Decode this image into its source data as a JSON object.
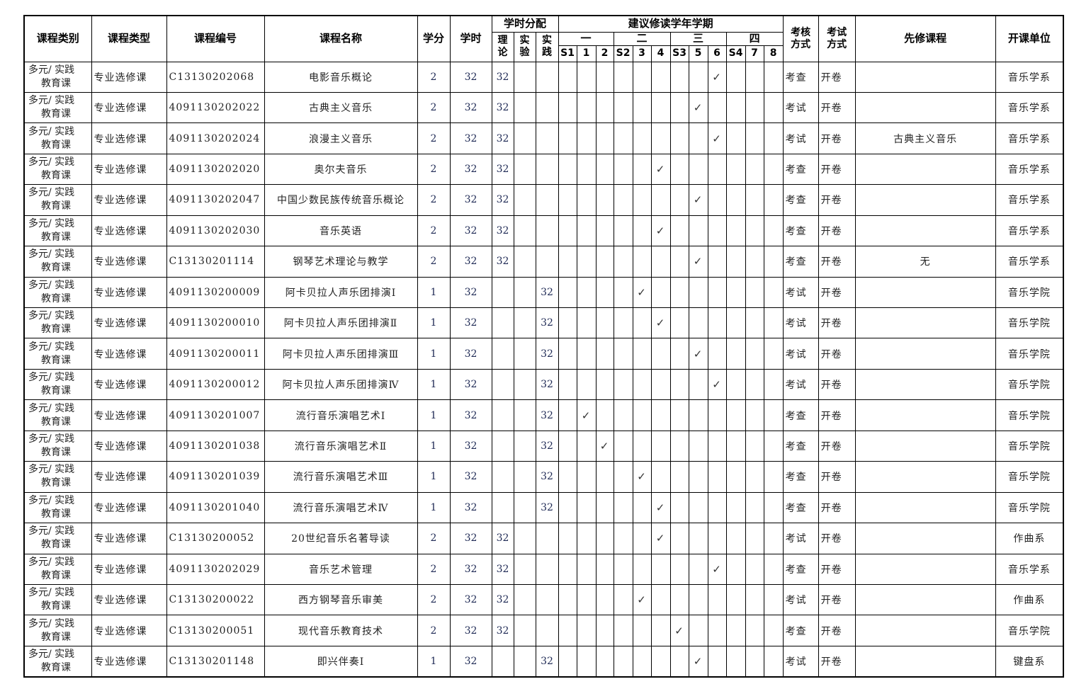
{
  "headers": {
    "category": "课程类别",
    "type": "课程类型",
    "code": "课程编号",
    "name": "课程名称",
    "credits": "学分",
    "hours": "学时",
    "hours_dist": "学时分配",
    "theory": "理论",
    "experiment": "实验",
    "practice": "实践",
    "semesters_title": "建议修读学年学期",
    "years": [
      "一",
      "二",
      "三",
      "四"
    ],
    "semesters": [
      "S1",
      "1",
      "2",
      "S2",
      "3",
      "4",
      "S3",
      "5",
      "6",
      "S4",
      "7",
      "8"
    ],
    "assessment": "考核方式",
    "exam": "考试方式",
    "prereq": "先修课程",
    "unit": "开课单位"
  },
  "check_mark": "✓",
  "rows": [
    {
      "category_1": "多元/ 实践",
      "category_2": "教育课",
      "type": "专业选修课",
      "code": "C13130202068",
      "name": "电影音乐概论",
      "credits": "2",
      "hours": "32",
      "theory": "32",
      "experiment": "",
      "practice": "",
      "semester": "6",
      "assessment": "考查",
      "exam": "开卷",
      "prereq": "",
      "unit": "音乐学系"
    },
    {
      "category_1": "多元/ 实践",
      "category_2": "教育课",
      "type": "专业选修课",
      "code": "4091130202022",
      "name": "古典主义音乐",
      "credits": "2",
      "hours": "32",
      "theory": "32",
      "experiment": "",
      "practice": "",
      "semester": "5",
      "assessment": "考试",
      "exam": "开卷",
      "prereq": "",
      "unit": "音乐学系"
    },
    {
      "category_1": "多元/ 实践",
      "category_2": "教育课",
      "type": "专业选修课",
      "code": "4091130202024",
      "name": "浪漫主义音乐",
      "credits": "2",
      "hours": "32",
      "theory": "32",
      "experiment": "",
      "practice": "",
      "semester": "6",
      "assessment": "考试",
      "exam": "开卷",
      "prereq": "古典主义音乐",
      "unit": "音乐学系"
    },
    {
      "category_1": "多元/ 实践",
      "category_2": "教育课",
      "type": "专业选修课",
      "code": "4091130202020",
      "name": "奥尔夫音乐",
      "credits": "2",
      "hours": "32",
      "theory": "32",
      "experiment": "",
      "practice": "",
      "semester": "4",
      "assessment": "考查",
      "exam": "开卷",
      "prereq": "",
      "unit": "音乐学系"
    },
    {
      "category_1": "多元/ 实践",
      "category_2": "教育课",
      "type": "专业选修课",
      "code": "4091130202047",
      "name": "中国少数民族传统音乐概论",
      "credits": "2",
      "hours": "32",
      "theory": "32",
      "experiment": "",
      "practice": "",
      "semester": "5",
      "assessment": "考查",
      "exam": "开卷",
      "prereq": "",
      "unit": "音乐学系"
    },
    {
      "category_1": "多元/ 实践",
      "category_2": "教育课",
      "type": "专业选修课",
      "code": "4091130202030",
      "name": "音乐英语",
      "credits": "2",
      "hours": "32",
      "theory": "32",
      "experiment": "",
      "practice": "",
      "semester": "4",
      "assessment": "考查",
      "exam": "开卷",
      "prereq": "",
      "unit": "音乐学系"
    },
    {
      "category_1": "多元/ 实践",
      "category_2": "教育课",
      "type": "专业选修课",
      "code": "C13130201114",
      "name": "钢琴艺术理论与教学",
      "credits": "2",
      "hours": "32",
      "theory": "32",
      "experiment": "",
      "practice": "",
      "semester": "5",
      "assessment": "考查",
      "exam": "开卷",
      "prereq": "无",
      "unit": "音乐学系"
    },
    {
      "category_1": "多元/ 实践",
      "category_2": "教育课",
      "type": "专业选修课",
      "code": "4091130200009",
      "name": "阿卡贝拉人声乐团排演Ⅰ",
      "credits": "1",
      "hours": "32",
      "theory": "",
      "experiment": "",
      "practice": "32",
      "semester": "3",
      "assessment": "考试",
      "exam": "开卷",
      "prereq": "",
      "unit": "音乐学院"
    },
    {
      "category_1": "多元/ 实践",
      "category_2": "教育课",
      "type": "专业选修课",
      "code": "4091130200010",
      "name": "阿卡贝拉人声乐团排演Ⅱ",
      "credits": "1",
      "hours": "32",
      "theory": "",
      "experiment": "",
      "practice": "32",
      "semester": "4",
      "assessment": "考试",
      "exam": "开卷",
      "prereq": "",
      "unit": "音乐学院"
    },
    {
      "category_1": "多元/ 实践",
      "category_2": "教育课",
      "type": "专业选修课",
      "code": "4091130200011",
      "name": "阿卡贝拉人声乐团排演Ⅲ",
      "credits": "1",
      "hours": "32",
      "theory": "",
      "experiment": "",
      "practice": "32",
      "semester": "5",
      "assessment": "考试",
      "exam": "开卷",
      "prereq": "",
      "unit": "音乐学院"
    },
    {
      "category_1": "多元/ 实践",
      "category_2": "教育课",
      "type": "专业选修课",
      "code": "4091130200012",
      "name": "阿卡贝拉人声乐团排演Ⅳ",
      "credits": "1",
      "hours": "32",
      "theory": "",
      "experiment": "",
      "practice": "32",
      "semester": "6",
      "assessment": "考试",
      "exam": "开卷",
      "prereq": "",
      "unit": "音乐学院"
    },
    {
      "category_1": "多元/ 实践",
      "category_2": "教育课",
      "type": "专业选修课",
      "code": "4091130201007",
      "name": "流行音乐演唱艺术Ⅰ",
      "credits": "1",
      "hours": "32",
      "theory": "",
      "experiment": "",
      "practice": "32",
      "semester": "1",
      "assessment": "考查",
      "exam": "开卷",
      "prereq": "",
      "unit": "音乐学院"
    },
    {
      "category_1": "多元/ 实践",
      "category_2": "教育课",
      "type": "专业选修课",
      "code": "4091130201038",
      "name": "流行音乐演唱艺术Ⅱ",
      "credits": "1",
      "hours": "32",
      "theory": "",
      "experiment": "",
      "practice": "32",
      "semester": "2",
      "assessment": "考查",
      "exam": "开卷",
      "prereq": "",
      "unit": "音乐学院"
    },
    {
      "category_1": "多元/ 实践",
      "category_2": "教育课",
      "type": "专业选修课",
      "code": "4091130201039",
      "name": "流行音乐演唱艺术Ⅲ",
      "credits": "1",
      "hours": "32",
      "theory": "",
      "experiment": "",
      "practice": "32",
      "semester": "3",
      "assessment": "考查",
      "exam": "开卷",
      "prereq": "",
      "unit": "音乐学院"
    },
    {
      "category_1": "多元/ 实践",
      "category_2": "教育课",
      "type": "专业选修课",
      "code": "4091130201040",
      "name": "流行音乐演唱艺术Ⅳ",
      "credits": "1",
      "hours": "32",
      "theory": "",
      "experiment": "",
      "practice": "32",
      "semester": "4",
      "assessment": "考查",
      "exam": "开卷",
      "prereq": "",
      "unit": "音乐学院"
    },
    {
      "category_1": "多元/ 实践",
      "category_2": "教育课",
      "type": "专业选修课",
      "code": "C13130200052",
      "name": "20世纪音乐名著导读",
      "credits": "2",
      "hours": "32",
      "theory": "32",
      "experiment": "",
      "practice": "",
      "semester": "4",
      "assessment": "考试",
      "exam": "开卷",
      "prereq": "",
      "unit": "作曲系"
    },
    {
      "category_1": "多元/ 实践",
      "category_2": "教育课",
      "type": "专业选修课",
      "code": "4091130202029",
      "name": "音乐艺术管理",
      "credits": "2",
      "hours": "32",
      "theory": "32",
      "experiment": "",
      "practice": "",
      "semester": "6",
      "assessment": "考查",
      "exam": "开卷",
      "prereq": "",
      "unit": "音乐学系"
    },
    {
      "category_1": "多元/ 实践",
      "category_2": "教育课",
      "type": "专业选修课",
      "code": "C13130200022",
      "name": "西方钢琴音乐审美",
      "credits": "2",
      "hours": "32",
      "theory": "32",
      "experiment": "",
      "practice": "",
      "semester": "3",
      "assessment": "考试",
      "exam": "开卷",
      "prereq": "",
      "unit": "作曲系"
    },
    {
      "category_1": "多元/ 实践",
      "category_2": "教育课",
      "type": "专业选修课",
      "code": "C13130200051",
      "name": "现代音乐教育技术",
      "credits": "2",
      "hours": "32",
      "theory": "32",
      "experiment": "",
      "practice": "",
      "semester": "S3",
      "assessment": "考查",
      "exam": "开卷",
      "prereq": "",
      "unit": "音乐学院"
    },
    {
      "category_1": "多元/ 实践",
      "category_2": "教育课",
      "type": "专业选修课",
      "code": "C13130201148",
      "name": "即兴伴奏Ⅰ",
      "credits": "1",
      "hours": "32",
      "theory": "",
      "experiment": "",
      "practice": "32",
      "semester": "5",
      "assessment": "考试",
      "exam": "开卷",
      "prereq": "",
      "unit": "键盘系"
    }
  ]
}
